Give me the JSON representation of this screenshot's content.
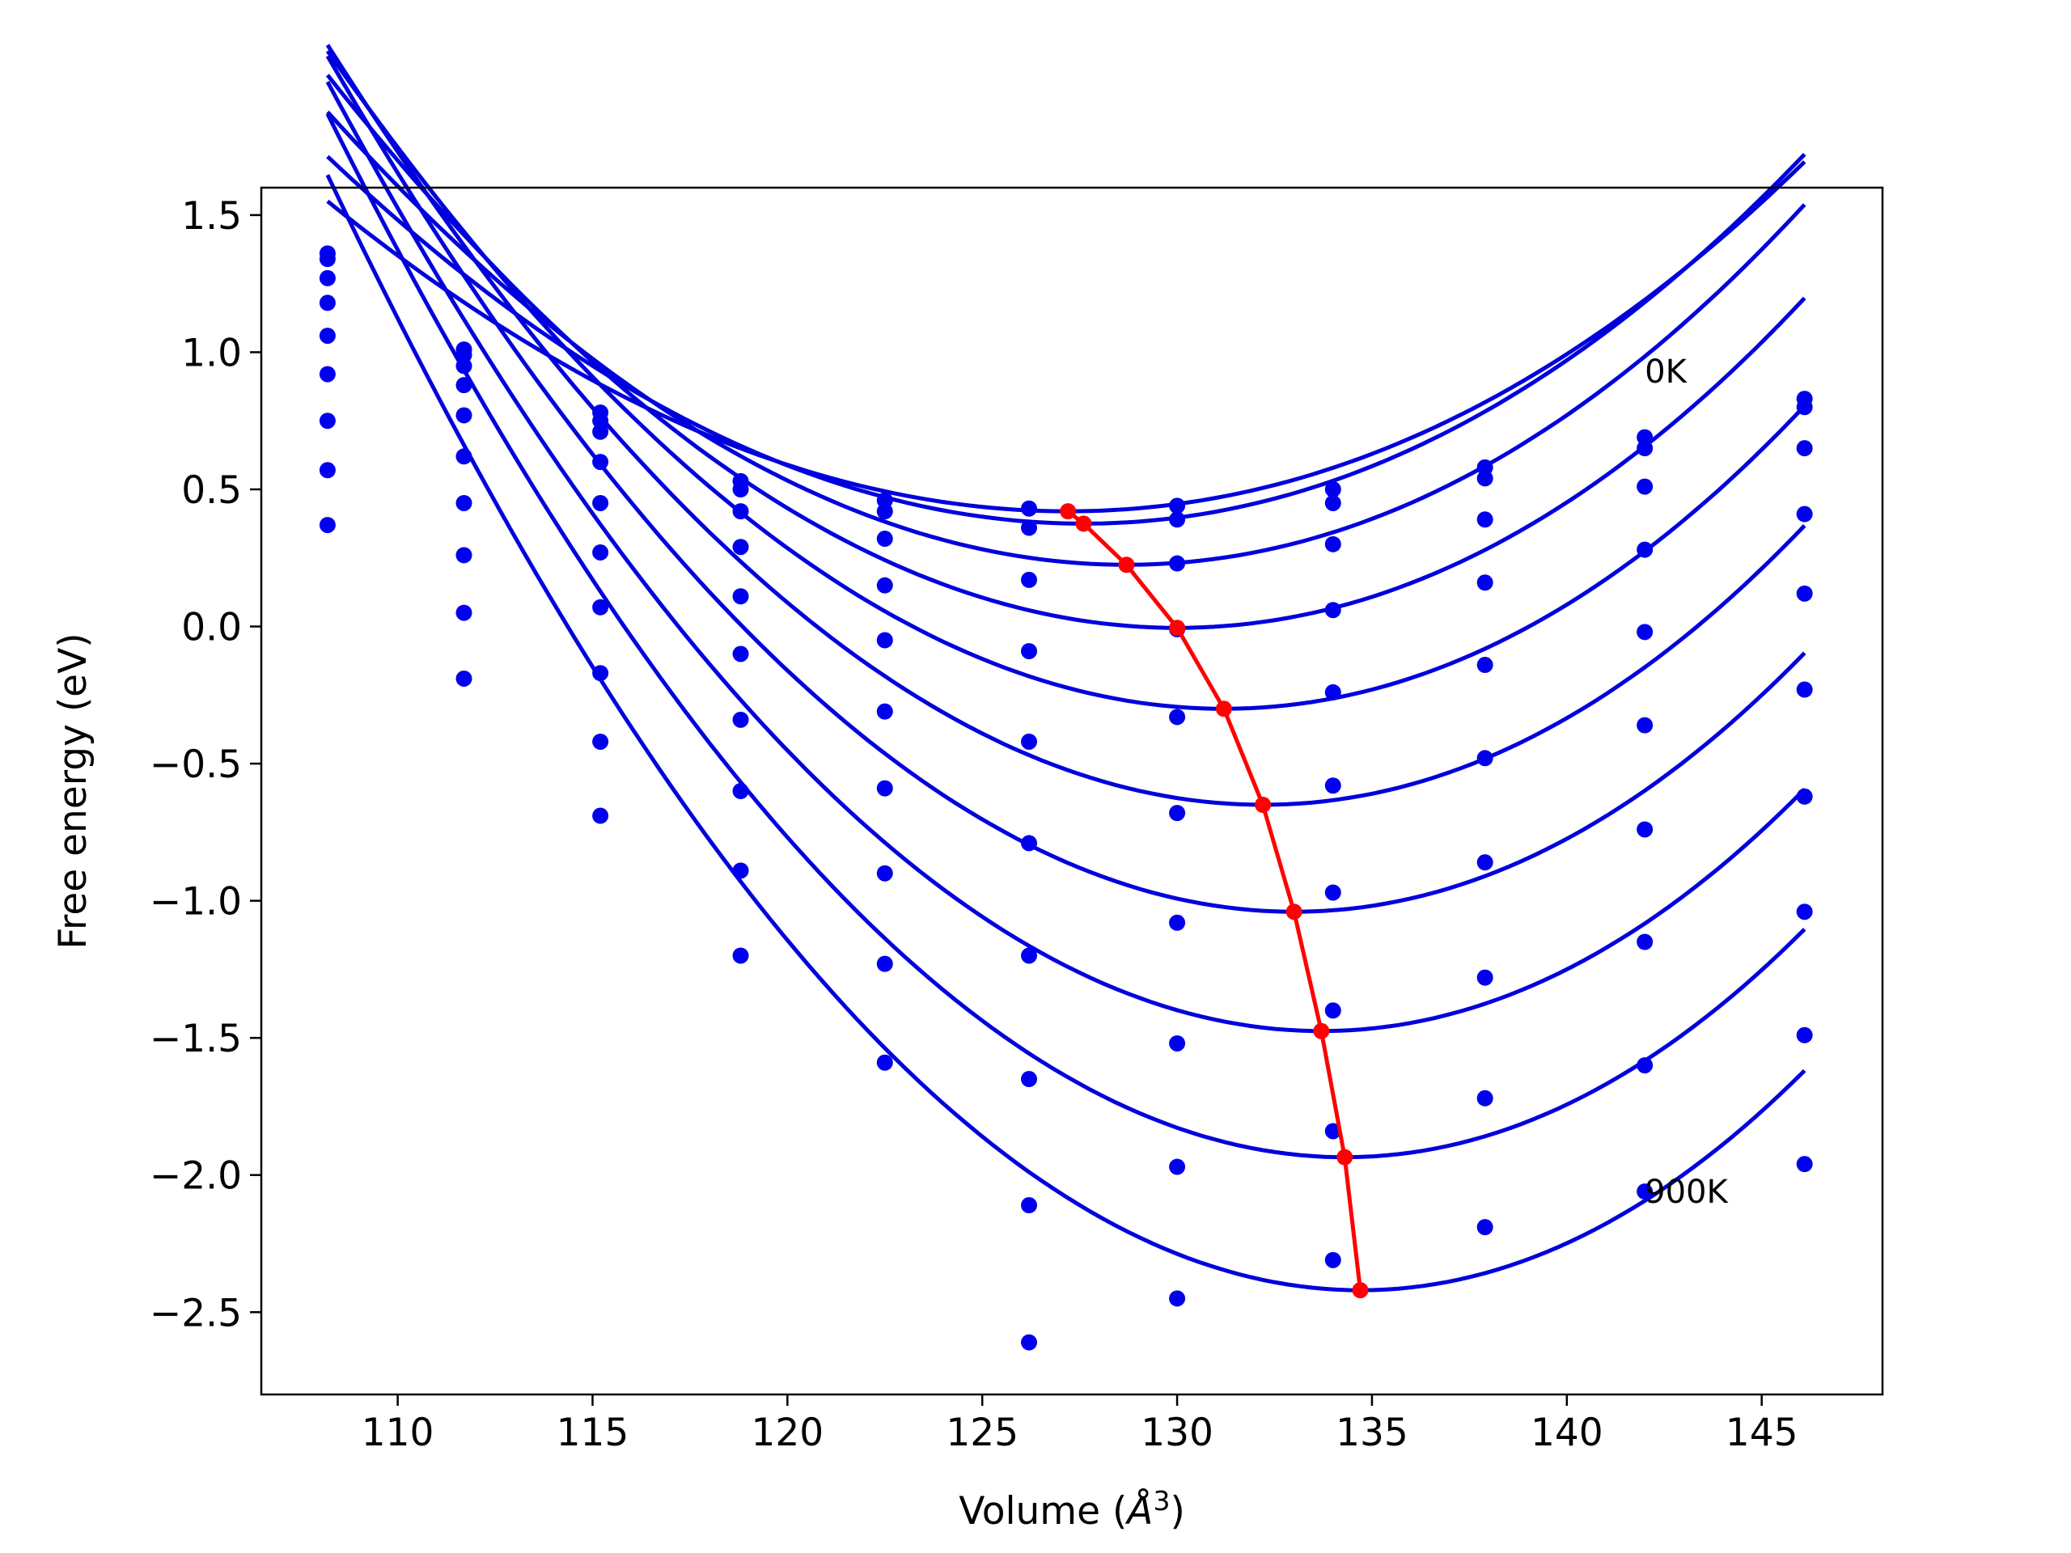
{
  "chart_data": {
    "type": "scatter",
    "xlabel": "Volume (",
    "xlabel_symbol": "Å",
    "xlabel_exp": "3",
    "xlabel_close": ")",
    "ylabel": "Free energy (eV)",
    "xlim": [
      106.5,
      148.1
    ],
    "ylim": [
      -2.8,
      1.6
    ],
    "xticks": [
      110,
      115,
      120,
      125,
      130,
      135,
      140,
      145
    ],
    "xtick_labels": [
      "110",
      "115",
      "120",
      "125",
      "130",
      "135",
      "140",
      "145"
    ],
    "yticks": [
      1.5,
      1.0,
      0.5,
      0.0,
      -0.5,
      -1.0,
      -1.5,
      -2.0,
      -2.5
    ],
    "ytick_labels": [
      "1.5",
      "1.0",
      "0.5",
      "0.0",
      "−0.5",
      "−1.0",
      "−1.5",
      "−2.0",
      "−2.5"
    ],
    "grid": false,
    "annotations": [
      {
        "text": "0K",
        "x": 142.0,
        "y": 0.93
      },
      {
        "text": "900K",
        "x": 142.0,
        "y": -2.06
      }
    ],
    "colors": {
      "points": "#0000ee",
      "fits": "#0000dd",
      "minima": "#ff0000"
    },
    "volumes": [
      108.2,
      111.7,
      115.2,
      118.8,
      122.5,
      126.2,
      130.0,
      134.0,
      137.9,
      142.0,
      146.1
    ],
    "series": [
      {
        "kind": "points",
        "values": [
          1.36,
          1.01,
          0.78,
          0.53,
          0.46,
          0.43,
          0.44,
          0.5,
          0.58,
          0.69,
          0.83
        ]
      },
      {
        "kind": "points",
        "values": [
          1.34,
          0.99,
          0.75,
          0.5,
          0.42,
          0.36,
          0.39,
          0.45,
          0.54,
          0.65,
          0.8
        ]
      },
      {
        "kind": "points",
        "values": [
          1.27,
          0.95,
          0.71,
          0.42,
          0.32,
          0.17,
          0.23,
          0.3,
          0.39,
          0.51,
          0.65
        ]
      },
      {
        "kind": "points",
        "values": [
          1.18,
          0.88,
          0.6,
          0.29,
          0.15,
          -0.09,
          -0.01,
          0.06,
          0.16,
          0.28,
          0.41
        ]
      },
      {
        "kind": "points",
        "values": [
          1.06,
          0.77,
          0.45,
          0.11,
          -0.05,
          -0.42,
          -0.33,
          -0.24,
          -0.14,
          -0.02,
          0.12
        ]
      },
      {
        "kind": "points",
        "values": [
          0.92,
          0.62,
          0.27,
          -0.1,
          -0.31,
          -0.79,
          -0.68,
          -0.58,
          -0.48,
          -0.36,
          -0.23
        ]
      },
      {
        "kind": "points",
        "values": [
          0.75,
          0.45,
          0.07,
          -0.34,
          -0.59,
          -1.2,
          -1.08,
          -0.97,
          -0.86,
          -0.74,
          -0.62
        ]
      },
      {
        "kind": "points",
        "values": [
          0.57,
          0.26,
          -0.17,
          -0.6,
          -0.9,
          -1.65,
          -1.52,
          -1.4,
          -1.28,
          -1.15,
          -1.04
        ]
      },
      {
        "kind": "points",
        "values": [
          0.37,
          0.05,
          -0.42,
          -0.89,
          -1.23,
          -2.11,
          -1.97,
          -1.84,
          -1.72,
          -1.6,
          -1.49
        ]
      },
      {
        "kind": "points",
        "values": [
          null,
          -0.19,
          -0.69,
          -1.2,
          -1.59,
          -2.61,
          -2.45,
          -2.31,
          -2.19,
          -2.06,
          -1.96
        ]
      }
    ],
    "fits": [
      {
        "v0": 127.2,
        "e0": 0.42,
        "a": 0.00335,
        "b": 1.15e-05
      },
      {
        "v0": 127.6,
        "e0": 0.375,
        "a": 0.00375,
        "b": 1e-05
      },
      {
        "v0": 128.7,
        "e0": 0.225,
        "a": 0.00415,
        "b": 1.08e-05
      },
      {
        "v0": 130.0,
        "e0": -0.005,
        "a": 0.00447,
        "b": 1.05e-05
      },
      {
        "v0": 131.2,
        "e0": -0.3,
        "a": 0.0048,
        "b": 1.16e-05
      },
      {
        "v0": 132.2,
        "e0": -0.65,
        "a": 0.0051,
        "b": 1.21e-05
      },
      {
        "v0": 133.0,
        "e0": -1.04,
        "a": 0.00535,
        "b": 1.12e-05
      },
      {
        "v0": 133.7,
        "e0": -1.475,
        "a": 0.0056,
        "b": 1.09e-05
      },
      {
        "v0": 134.3,
        "e0": -1.935,
        "a": 0.00585,
        "b": 1.02e-05
      },
      {
        "v0": 134.7,
        "e0": -2.42,
        "a": 0.00605,
        "b": 9.8e-06
      }
    ],
    "fit_range": [
      108.2,
      146.1
    ],
    "minima": {
      "x": [
        127.2,
        127.6,
        128.7,
        130.0,
        131.2,
        132.2,
        133.0,
        133.7,
        134.3,
        134.7
      ],
      "y": [
        0.42,
        0.375,
        0.225,
        -0.005,
        -0.3,
        -0.65,
        -1.04,
        -1.475,
        -1.935,
        -2.42
      ]
    }
  }
}
